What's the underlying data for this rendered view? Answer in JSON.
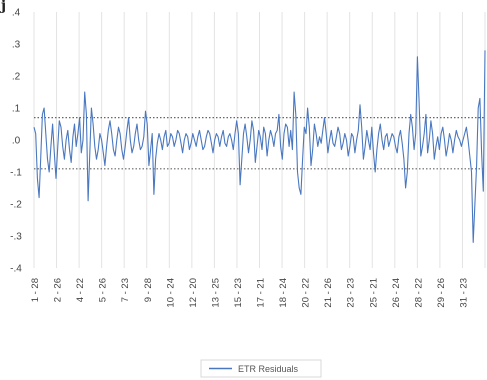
{
  "chart_data": {
    "type": "line",
    "corner_label": "j",
    "ylim": [
      -0.4,
      0.4
    ],
    "y_ticks": [
      ".4",
      ".3",
      ".2",
      ".1",
      ".0",
      "-.1",
      "-.2",
      "-.3",
      "-.4"
    ],
    "x_ticks": [
      "1 - 28",
      "2 - 26",
      "4 - 22",
      "5 - 26",
      "7 - 23",
      "9 - 28",
      "10 - 24",
      "12 - 20",
      "13 - 25",
      "15 - 23",
      "17 - 21",
      "18 - 24",
      "20 - 22",
      "21 - 26",
      "23 - 23",
      "25 - 21",
      "26 - 24",
      "28 - 22",
      "29 - 26",
      "31 - 23"
    ],
    "grid": "vertical",
    "bands": [
      0.07,
      -0.09
    ],
    "legend": "bottom",
    "series": [
      {
        "name": "ETR Residuals",
        "color": "#4a78c0",
        "values": [
          0.04,
          0.02,
          -0.12,
          -0.18,
          -0.05,
          0.08,
          0.1,
          0.02,
          -0.06,
          -0.1,
          -0.02,
          0.05,
          -0.04,
          -0.12,
          -0.03,
          0.06,
          0.04,
          -0.02,
          -0.06,
          0.0,
          0.03,
          -0.03,
          -0.07,
          0.01,
          0.05,
          -0.02,
          0.02,
          0.07,
          -0.04,
          0.0,
          0.15,
          0.08,
          -0.19,
          -0.05,
          0.1,
          0.05,
          -0.02,
          -0.06,
          -0.03,
          0.02,
          0.0,
          -0.04,
          -0.08,
          -0.02,
          0.03,
          0.06,
          0.02,
          -0.03,
          -0.05,
          0.0,
          0.04,
          0.02,
          -0.03,
          -0.06,
          -0.02,
          0.03,
          0.07,
          0.0,
          -0.04,
          -0.02,
          0.02,
          0.05,
          0.0,
          -0.03,
          -0.02,
          0.01,
          0.09,
          0.05,
          -0.08,
          -0.03,
          0.02,
          -0.17,
          -0.06,
          -0.01,
          0.02,
          0.0,
          -0.03,
          0.01,
          0.03,
          -0.02,
          -0.01,
          0.02,
          0.01,
          -0.02,
          0.0,
          0.03,
          0.02,
          -0.01,
          -0.04,
          0.0,
          0.02,
          0.01,
          -0.03,
          -0.01,
          0.02,
          0.0,
          -0.02,
          0.01,
          0.03,
          0.0,
          -0.03,
          -0.02,
          0.01,
          0.03,
          0.02,
          -0.01,
          -0.04,
          0.0,
          0.02,
          0.01,
          -0.02,
          0.01,
          0.03,
          -0.01,
          -0.02,
          0.01,
          0.02,
          0.0,
          -0.03,
          0.02,
          0.06,
          0.02,
          -0.14,
          -0.06,
          0.02,
          0.05,
          0.01,
          -0.04,
          0.0,
          0.06,
          0.03,
          -0.07,
          -0.02,
          0.03,
          0.01,
          -0.03,
          0.04,
          0.02,
          -0.05,
          0.0,
          0.03,
          0.01,
          -0.02,
          0.02,
          0.03,
          0.08,
          -0.02,
          -0.06,
          0.02,
          0.05,
          0.04,
          -0.02,
          0.03,
          -0.03,
          0.15,
          0.08,
          -0.1,
          -0.15,
          -0.17,
          -0.06,
          0.04,
          0.02,
          0.1,
          0.04,
          -0.08,
          -0.03,
          0.05,
          0.02,
          -0.02,
          0.01,
          -0.01,
          0.03,
          0.07,
          0.02,
          -0.04,
          0.0,
          0.03,
          -0.01,
          -0.02,
          0.01,
          0.04,
          0.02,
          -0.03,
          -0.01,
          0.02,
          0.0,
          -0.05,
          -0.02,
          0.02,
          0.01,
          -0.04,
          0.0,
          0.03,
          0.11,
          0.04,
          -0.06,
          -0.02,
          0.03,
          0.0,
          -0.03,
          0.04,
          -0.04,
          -0.1,
          -0.03,
          0.02,
          0.05,
          0.0,
          -0.03,
          0.01,
          0.02,
          -0.02,
          0.0,
          0.02,
          0.01,
          -0.02,
          -0.04,
          0.01,
          0.03,
          -0.01,
          -0.06,
          -0.15,
          -0.1,
          0.02,
          0.08,
          0.04,
          -0.03,
          0.02,
          0.26,
          0.12,
          -0.05,
          -0.02,
          0.02,
          0.08,
          -0.04,
          0.0,
          0.06,
          0.02,
          -0.06,
          -0.02,
          0.01,
          -0.03,
          0.02,
          0.04,
          0.0,
          -0.05,
          -0.02,
          0.02,
          0.0,
          -0.04,
          0.0,
          0.03,
          0.01,
          0.0,
          -0.02,
          0.0,
          0.02,
          0.04,
          0.0,
          -0.05,
          -0.1,
          -0.32,
          -0.2,
          -0.08,
          0.1,
          0.13,
          -0.04,
          -0.16,
          0.28
        ]
      }
    ]
  }
}
